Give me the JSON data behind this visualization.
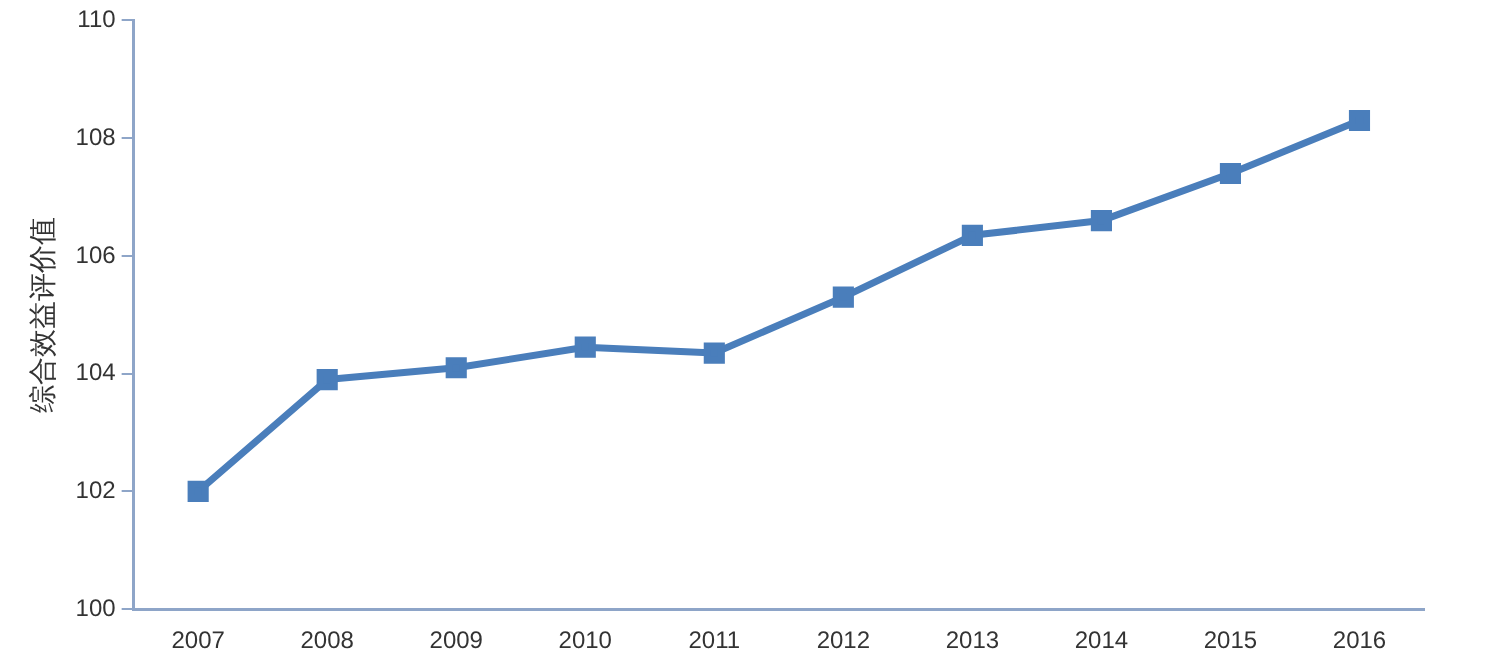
{
  "chart_data": {
    "type": "line",
    "ylabel": "综合效益评价值",
    "categories": [
      "2007",
      "2008",
      "2009",
      "2010",
      "2011",
      "2012",
      "2013",
      "2014",
      "2015",
      "2016"
    ],
    "series": [
      {
        "color": "#4a7ebb",
        "values": [
          102.0,
          103.9,
          104.1,
          104.45,
          104.35,
          105.3,
          106.35,
          106.6,
          107.4,
          108.3
        ]
      }
    ],
    "ylim": [
      100,
      110
    ],
    "yticks": [
      100,
      102,
      104,
      106,
      108,
      110
    ],
    "grid": false,
    "legend": false,
    "marker": "square",
    "line_style": "solid"
  }
}
